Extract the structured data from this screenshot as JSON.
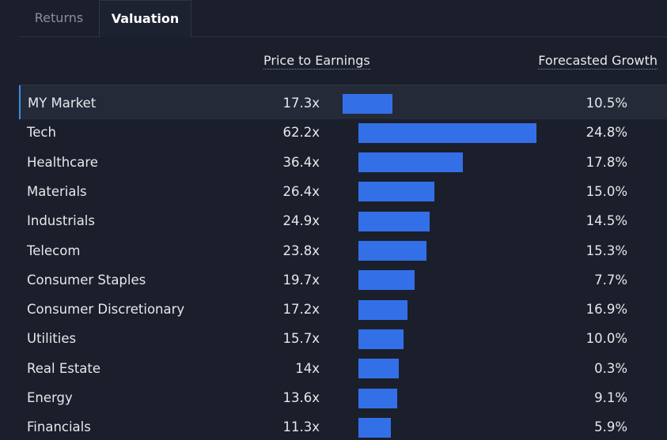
{
  "tabs": [
    "Returns",
    "Valuation"
  ],
  "columns": {
    "pe": "Price to Earnings",
    "growth": "Forecasted Growth"
  },
  "rows": [
    {
      "name": "MY Market",
      "pe": 17.3,
      "pe_label": "17.3x",
      "growth": 10.5,
      "growth_label": "10.5%"
    },
    {
      "name": "Tech",
      "pe": 62.2,
      "pe_label": "62.2x",
      "growth": 24.8,
      "growth_label": "24.8%"
    },
    {
      "name": "Healthcare",
      "pe": 36.4,
      "pe_label": "36.4x",
      "growth": 17.8,
      "growth_label": "17.8%"
    },
    {
      "name": "Materials",
      "pe": 26.4,
      "pe_label": "26.4x",
      "growth": 15.0,
      "growth_label": "15.0%"
    },
    {
      "name": "Industrials",
      "pe": 24.9,
      "pe_label": "24.9x",
      "growth": 14.5,
      "growth_label": "14.5%"
    },
    {
      "name": "Telecom",
      "pe": 23.8,
      "pe_label": "23.8x",
      "growth": 15.3,
      "growth_label": "15.3%"
    },
    {
      "name": "Consumer Staples",
      "pe": 19.7,
      "pe_label": "19.7x",
      "growth": 7.7,
      "growth_label": "7.7%"
    },
    {
      "name": "Consumer Discretionary",
      "pe": 17.2,
      "pe_label": "17.2x",
      "growth": 16.9,
      "growth_label": "16.9%"
    },
    {
      "name": "Utilities",
      "pe": 15.7,
      "pe_label": "15.7x",
      "growth": 10.0,
      "growth_label": "10.0%"
    },
    {
      "name": "Real Estate",
      "pe": 14,
      "pe_label": "14x",
      "growth": 0.3,
      "growth_label": "0.3%"
    },
    {
      "name": "Energy",
      "pe": 13.6,
      "pe_label": "13.6x",
      "growth": 9.1,
      "growth_label": "9.1%"
    },
    {
      "name": "Financials",
      "pe": 11.3,
      "pe_label": "11.3x",
      "growth": 5.9,
      "growth_label": "5.9%"
    }
  ]
}
